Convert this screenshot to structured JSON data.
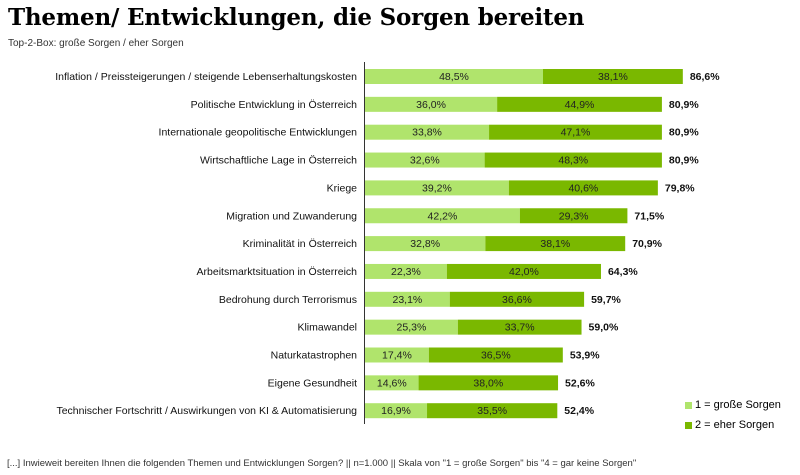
{
  "header": {
    "title": "Themen/ Entwicklungen, die Sorgen bereiten",
    "subtitle": "Top-2-Box: große Sorgen / eher Sorgen"
  },
  "footer": {
    "note": "[...] Inwieweit bereiten Ihnen die folgenden Themen und Entwicklungen Sorgen? || n=1.000 || Skala von \"1 = große Sorgen\" bis \"4 = gar keine Sorgen\""
  },
  "colors": {
    "series1": "#B0E46C",
    "series2": "#7AB800",
    "axis": "#333333"
  },
  "chart_data": {
    "type": "bar",
    "orientation": "horizontal",
    "stacked": true,
    "title": "Themen/ Entwicklungen, die Sorgen bereiten",
    "subtitle": "Top-2-Box: große Sorgen / eher Sorgen",
    "xlabel": "",
    "ylabel": "",
    "xlim": [
      0,
      100
    ],
    "grid": false,
    "legend_position": "bottom-right",
    "categories": [
      "Inflation / Preissteigerungen / steigende Lebenserhaltungskosten",
      "Politische Entwicklung in Österreich",
      "Internationale geopolitische Entwicklungen",
      "Wirtschaftliche Lage in Österreich",
      "Kriege",
      "Migration und Zuwanderung",
      "Kriminalität in Österreich",
      "Arbeitsmarktsituation in Österreich",
      "Bedrohung durch Terrorismus",
      "Klimawandel",
      "Naturkatastrophen",
      "Eigene Gesundheit",
      "Technischer Fortschritt / Auswirkungen von KI & Automatisierung"
    ],
    "series": [
      {
        "name": "1 = große Sorgen",
        "values": [
          48.5,
          36.0,
          33.8,
          32.6,
          39.2,
          42.2,
          32.8,
          22.3,
          23.1,
          25.3,
          17.4,
          14.6,
          16.9
        ],
        "labels": [
          "48,5%",
          "36,0%",
          "33,8%",
          "32,6%",
          "39,2%",
          "42,2%",
          "32,8%",
          "22,3%",
          "23,1%",
          "25,3%",
          "17,4%",
          "14,6%",
          "16,9%"
        ]
      },
      {
        "name": "2 = eher Sorgen",
        "values": [
          38.1,
          44.9,
          47.1,
          48.3,
          40.6,
          29.3,
          38.1,
          42.0,
          36.6,
          33.7,
          36.5,
          38.0,
          35.5
        ],
        "labels": [
          "38,1%",
          "44,9%",
          "47,1%",
          "48,3%",
          "40,6%",
          "29,3%",
          "38,1%",
          "42,0%",
          "36,6%",
          "33,7%",
          "36,5%",
          "38,0%",
          "35,5%"
        ]
      }
    ],
    "totals": [
      86.6,
      80.9,
      80.9,
      80.9,
      79.8,
      71.5,
      70.9,
      64.3,
      59.7,
      59.0,
      53.9,
      52.6,
      52.4
    ],
    "total_labels": [
      "86,6%",
      "80,9%",
      "80,9%",
      "80,9%",
      "79,8%",
      "71,5%",
      "70,9%",
      "64,3%",
      "59,7%",
      "59,0%",
      "53,9%",
      "52,6%",
      "52,4%"
    ]
  }
}
